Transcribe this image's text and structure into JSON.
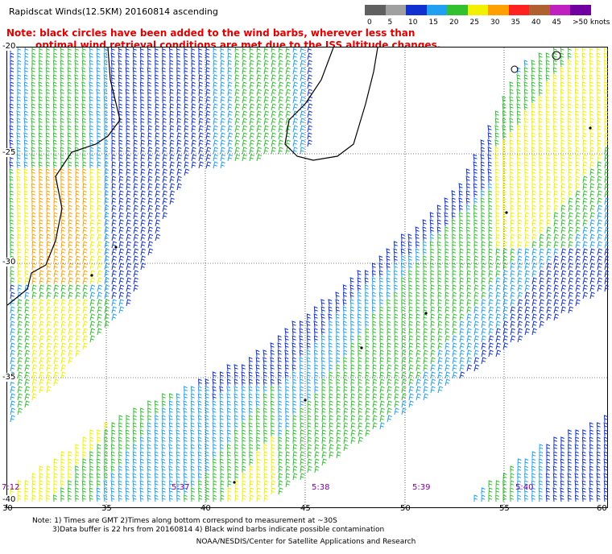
{
  "title": "Rapidscat Winds(12.5KM) 20160814 ascending",
  "note_line1": "Note: black circles have been added to the wind barbs, wherever less than",
  "note_line2": "optimal wind retrieval conditions are met due to the ISS altitude changes.",
  "legend": {
    "labels": [
      "0",
      "5",
      "10",
      "15",
      "20",
      "25",
      "30",
      "35",
      "40",
      "45",
      ">50 knots"
    ],
    "colors": [
      "#606060",
      "#a0a0a0",
      "#1030d0",
      "#20a0f0",
      "#30c030",
      "#f0f000",
      "#ffa000",
      "#ff2020",
      "#b06030",
      "#c020c0",
      "#7000a0"
    ]
  },
  "axes": {
    "x_labels": [
      "30",
      "35",
      "40",
      "45",
      "50",
      "55",
      "60"
    ],
    "y_labels": [
      "-20",
      "-25",
      "-30",
      "-35",
      "-40"
    ]
  },
  "pass_times": [
    "7:12",
    "5:37",
    "5:38",
    "5:39",
    "5:40"
  ],
  "footnote1": "Note: 1) Times are GMT 2)Times along bottom correspond to measurement at ~30S",
  "footnote2": "3)Data buffer is 22 hrs from 20160814 4) Black wind barbs indicate possible contamination",
  "credit": "NOAA/NESDIS/Center for Satellite Applications and Research"
}
